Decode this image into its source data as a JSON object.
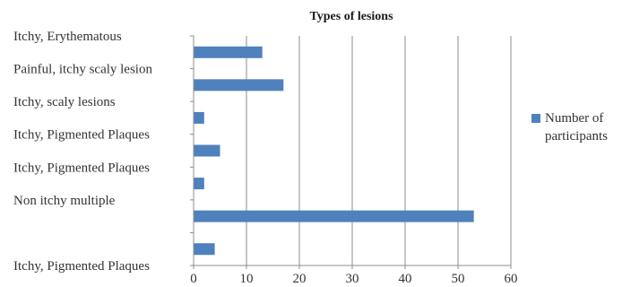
{
  "chart_data": {
    "type": "bar",
    "orientation": "horizontal",
    "title": "Types of lesions",
    "xlabel": "",
    "ylabel": "",
    "categories": [
      "Itchy, Erythematous",
      "Painful, itchy scaly lesion",
      "Itchy, scaly lesions",
      "Itchy,  Pigmented Plaques",
      "Itchy, Pigmented Plaques",
      "Non itchy multiple",
      "Itchy, Pigmented Plaques"
    ],
    "series": [
      {
        "name": "Number of participants",
        "values": [
          13,
          17,
          2,
          5,
          2,
          53,
          4
        ],
        "color": "#4f81bd"
      }
    ],
    "xlim": [
      0,
      60
    ],
    "xticks": [
      0,
      10,
      20,
      30,
      40,
      50,
      60
    ],
    "grid": {
      "vertical": true,
      "color": "#8c8c8c"
    },
    "legend": {
      "position": "right",
      "entries": [
        "Number of participants"
      ]
    }
  }
}
